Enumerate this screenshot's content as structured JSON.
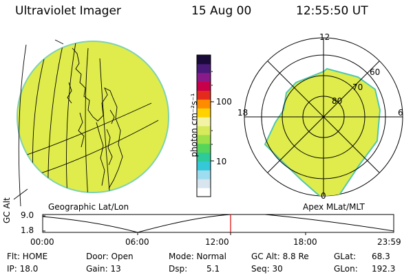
{
  "header": {
    "title": "Ultraviolet Imager",
    "date": "15 Aug 00",
    "time": "12:55:50 UT"
  },
  "colorbar": {
    "label": "photon cm⁻²s⁻¹",
    "ticks": [
      "100",
      "10"
    ],
    "colors": [
      "#ffffff",
      "#d8e4ee",
      "#9edcf0",
      "#35c8d8",
      "#2ecb9a",
      "#55d65a",
      "#9de04a",
      "#d7ea5c",
      "#f3f3a6",
      "#ffd200",
      "#ff8c00",
      "#e42a1c",
      "#c8004a",
      "#8a1a8a",
      "#4a1a7a",
      "#1a0a3a"
    ]
  },
  "geo_panel": {
    "label": "Geographic Lat/Lon",
    "fill": "#dfec4b"
  },
  "polar_panel": {
    "label": "Apex MLat/MLT",
    "mlt_labels": [
      "12",
      "18",
      "6",
      "0"
    ],
    "lat_labels": [
      "60",
      "70",
      "80"
    ],
    "fill": "#dfec4b"
  },
  "altitude_plot": {
    "ylabel": "GC Alt",
    "yticks": [
      "9.0",
      "1.8"
    ],
    "xticks": [
      "00:00",
      "06:00",
      "12:00",
      "18:00",
      "23:59"
    ],
    "marker_time": "12:55"
  },
  "status": {
    "flt": "Flt: HOME",
    "ip": "IP: 18.0",
    "door": "Door: Open",
    "gain": "Gain: 13",
    "mode": "Mode: Normal",
    "dsp": "Dsp:",
    "dsp_value": "5.1",
    "gc_alt": "GC Alt: 8.8 Re",
    "seq": "Seq: 30",
    "glat": "GLat:",
    "glat_value": "68.3",
    "glon": "GLon:",
    "glon_value": "192.3"
  }
}
